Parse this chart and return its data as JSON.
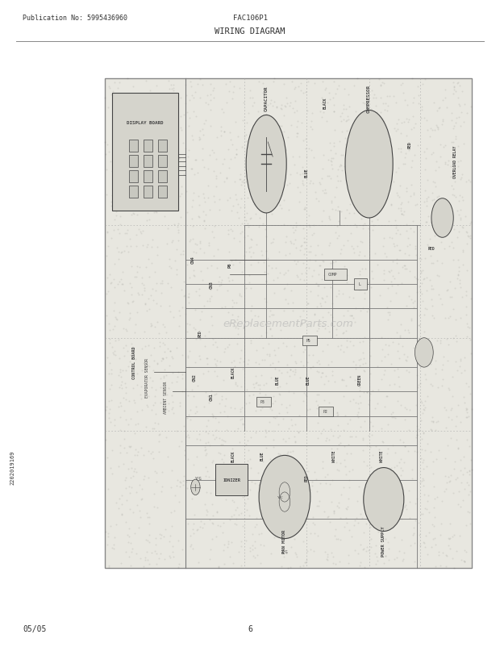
{
  "pub_no": "Publication No: 5995436960",
  "model": "FAC106P1",
  "title": "WIRING DIAGRAM",
  "date": "05/05",
  "page": "6",
  "doc_id": "2202019169",
  "bg_color": "#ffffff",
  "diagram_bg": "#e0dfd8",
  "text_color": "#333333",
  "dgray": "#444444",
  "watermark": "eReplacementParts.com"
}
